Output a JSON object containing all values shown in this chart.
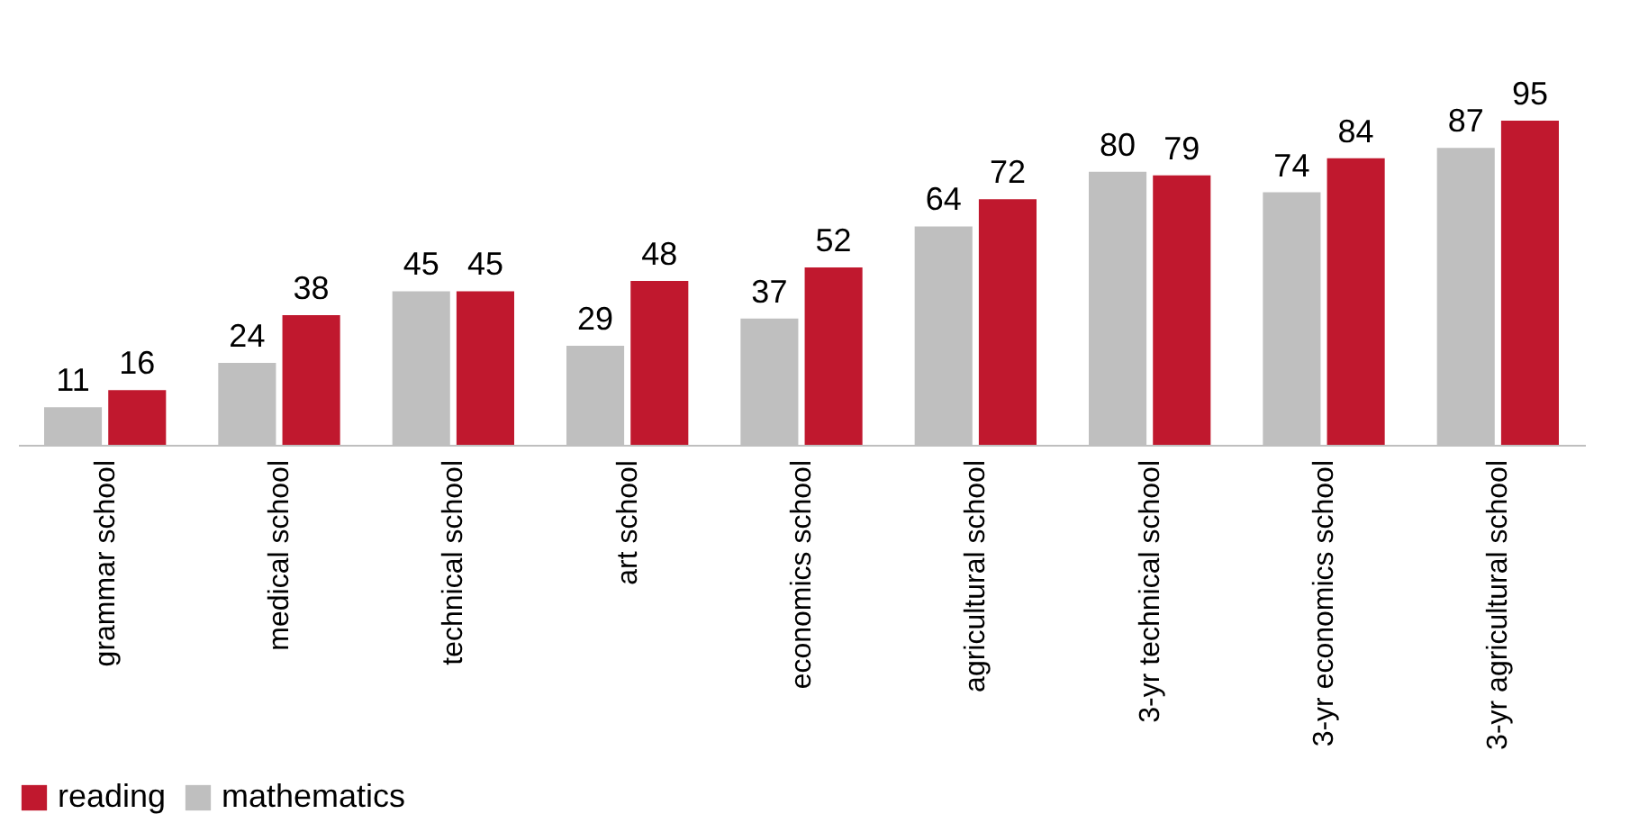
{
  "chart_data": {
    "type": "bar",
    "categories": [
      "grammar school",
      "medical school",
      "technical school",
      "art school",
      "economics school",
      "agricultural school",
      "3-yr technical school",
      "3-yr economics school",
      "3-yr agricultural school"
    ],
    "series": [
      {
        "name": "reading",
        "color": "#c0182e",
        "values": [
          16,
          38,
          45,
          48,
          52,
          72,
          79,
          84,
          95
        ]
      },
      {
        "name": "mathematics",
        "color": "#bfbfbf",
        "values": [
          11,
          24,
          45,
          29,
          37,
          64,
          80,
          74,
          87
        ]
      }
    ],
    "data_labels": true,
    "legend": "bottom",
    "grid": false
  }
}
